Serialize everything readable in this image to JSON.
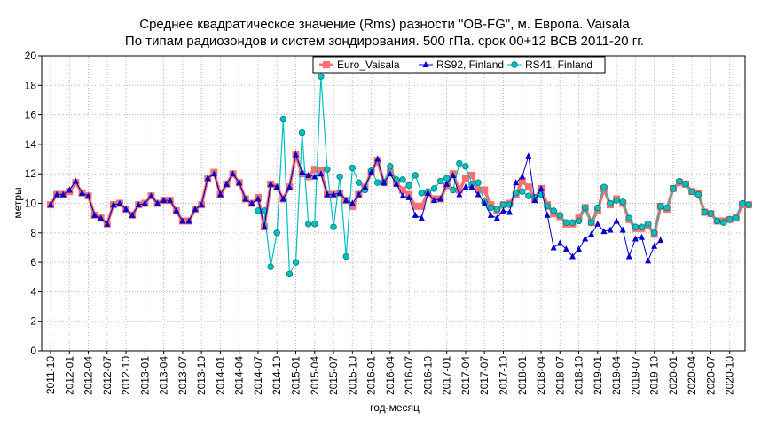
{
  "chart_data": {
    "type": "line",
    "title": "Среднее квадратическое значение (Rms) разности \"OB-FG\", м. Европа. Vaisala",
    "subtitle": "По типам радиозондов и систем зондирования. 500 гПа. срок 00+12 ВСВ 2011-20 гг.",
    "xlabel": "год-месяц",
    "ylabel": "метры",
    "ylim": [
      0,
      20
    ],
    "yticks": [
      0,
      2,
      4,
      6,
      8,
      10,
      12,
      14,
      16,
      18,
      20
    ],
    "grid": true,
    "legend_position": "top-right",
    "xtick_labels": [
      "2011-10",
      "2012-01",
      "2012-04",
      "2012-07",
      "2012-10",
      "2013-01",
      "2013-04",
      "2013-07",
      "2013-10",
      "2014-01",
      "2014-04",
      "2014-07",
      "2014-10",
      "2015-01",
      "2015-04",
      "2015-07",
      "2015-10",
      "2016-01",
      "2016-04",
      "2016-07",
      "2016-10",
      "2017-01",
      "2017-04",
      "2017-07",
      "2017-10",
      "2018-01",
      "2018-04",
      "2018-07",
      "2018-10",
      "2019-01",
      "2019-04",
      "2019-07",
      "2019-10",
      "2020-01",
      "2020-04",
      "2020-07",
      "2020-10"
    ],
    "x_start": "2011-10",
    "series": [
      {
        "name": "Euro_Vaisala",
        "color": "#f87070",
        "marker": "square",
        "values": [
          9.9,
          10.6,
          10.6,
          10.8,
          11.4,
          10.7,
          10.5,
          9.2,
          9.0,
          8.6,
          9.9,
          10.0,
          9.6,
          9.2,
          9.9,
          10.0,
          10.5,
          10.0,
          10.2,
          10.2,
          9.5,
          8.8,
          8.8,
          9.6,
          9.9,
          11.7,
          12.1,
          10.6,
          11.3,
          12.0,
          11.4,
          10.3,
          10.0,
          10.4,
          8.4,
          11.3,
          11.1,
          10.3,
          11.1,
          13.3,
          12.0,
          11.8,
          12.3,
          12.2,
          10.6,
          10.6,
          10.7,
          10.2,
          9.8,
          10.6,
          11.1,
          12.1,
          12.9,
          11.4,
          12.1,
          11.4,
          10.9,
          10.6,
          9.8,
          9.8,
          10.7,
          10.3,
          10.3,
          11.2,
          12.0,
          10.9,
          11.7,
          11.9,
          10.9,
          10.9,
          9.9,
          9.5,
          9.9,
          10.0,
          10.6,
          11.5,
          11.1,
          10.3,
          11.0,
          9.9,
          9.3,
          9.1,
          8.6,
          8.6,
          9.0,
          9.7,
          8.7,
          9.5,
          11.0,
          9.9,
          10.3,
          10.0,
          8.9,
          8.3,
          8.3,
          8.5,
          7.9,
          9.8,
          9.6,
          11.0,
          11.4,
          11.3,
          10.8,
          10.7,
          9.4,
          9.3,
          8.8,
          8.8,
          8.9,
          9.0,
          9.9,
          9.9
        ]
      },
      {
        "name": "RS92, Finland",
        "color": "#0000cc",
        "marker": "triangle",
        "values": [
          9.9,
          10.6,
          10.6,
          10.9,
          11.5,
          10.7,
          10.5,
          9.2,
          9.0,
          8.6,
          9.9,
          10.0,
          9.6,
          9.2,
          9.9,
          10.0,
          10.5,
          10.0,
          10.2,
          10.2,
          9.5,
          8.8,
          8.8,
          9.6,
          9.9,
          11.7,
          12.0,
          10.6,
          11.3,
          12.0,
          11.4,
          10.3,
          10.0,
          10.3,
          8.4,
          11.3,
          11.1,
          10.3,
          11.1,
          13.3,
          12.1,
          11.9,
          11.8,
          12.0,
          10.6,
          10.6,
          10.7,
          10.2,
          10.0,
          10.6,
          11.1,
          12.1,
          13.0,
          11.4,
          12.0,
          11.3,
          10.5,
          10.4,
          9.2,
          9.0,
          10.7,
          10.2,
          10.3,
          11.3,
          11.9,
          10.6,
          11.1,
          11.1,
          10.6,
          10.0,
          9.2,
          9.0,
          9.5,
          9.4,
          11.4,
          11.8,
          13.2,
          10.2,
          11.0,
          9.2,
          7.0,
          7.3,
          6.9,
          6.4,
          6.9,
          7.6,
          7.9,
          8.6,
          8.1,
          8.2,
          8.8,
          8.2,
          6.4,
          7.6,
          7.7,
          6.1,
          7.1,
          7.5
        ]
      },
      {
        "name": "RS41, Finland",
        "color": "#00c0c0",
        "marker": "circle",
        "start_index": 33,
        "values": [
          9.5,
          9.5,
          5.7,
          8.0,
          15.7,
          5.2,
          6.0,
          14.8,
          8.6,
          8.6,
          18.6,
          12.3,
          8.4,
          11.8,
          6.4,
          12.4,
          11.4,
          10.9,
          12.2,
          11.4,
          11.4,
          12.5,
          11.6,
          11.6,
          11.2,
          11.9,
          10.7,
          10.8,
          11.0,
          11.5,
          11.7,
          10.9,
          12.7,
          12.5,
          11.3,
          11.4,
          10.1,
          9.7,
          9.6,
          9.9,
          9.9,
          10.7,
          10.8,
          10.5,
          10.4,
          10.6,
          9.8,
          9.5,
          9.2,
          8.7,
          8.7,
          8.8,
          9.7,
          8.7,
          9.7,
          11.1,
          10.0,
          10.2,
          10.1,
          9.0,
          8.4,
          8.4,
          8.6,
          8.0,
          9.8,
          9.7,
          11.0,
          11.5,
          11.3,
          10.8,
          10.6,
          9.4,
          9.3,
          8.8,
          8.7,
          8.9,
          9.0,
          10.0,
          9.9
        ]
      }
    ]
  }
}
